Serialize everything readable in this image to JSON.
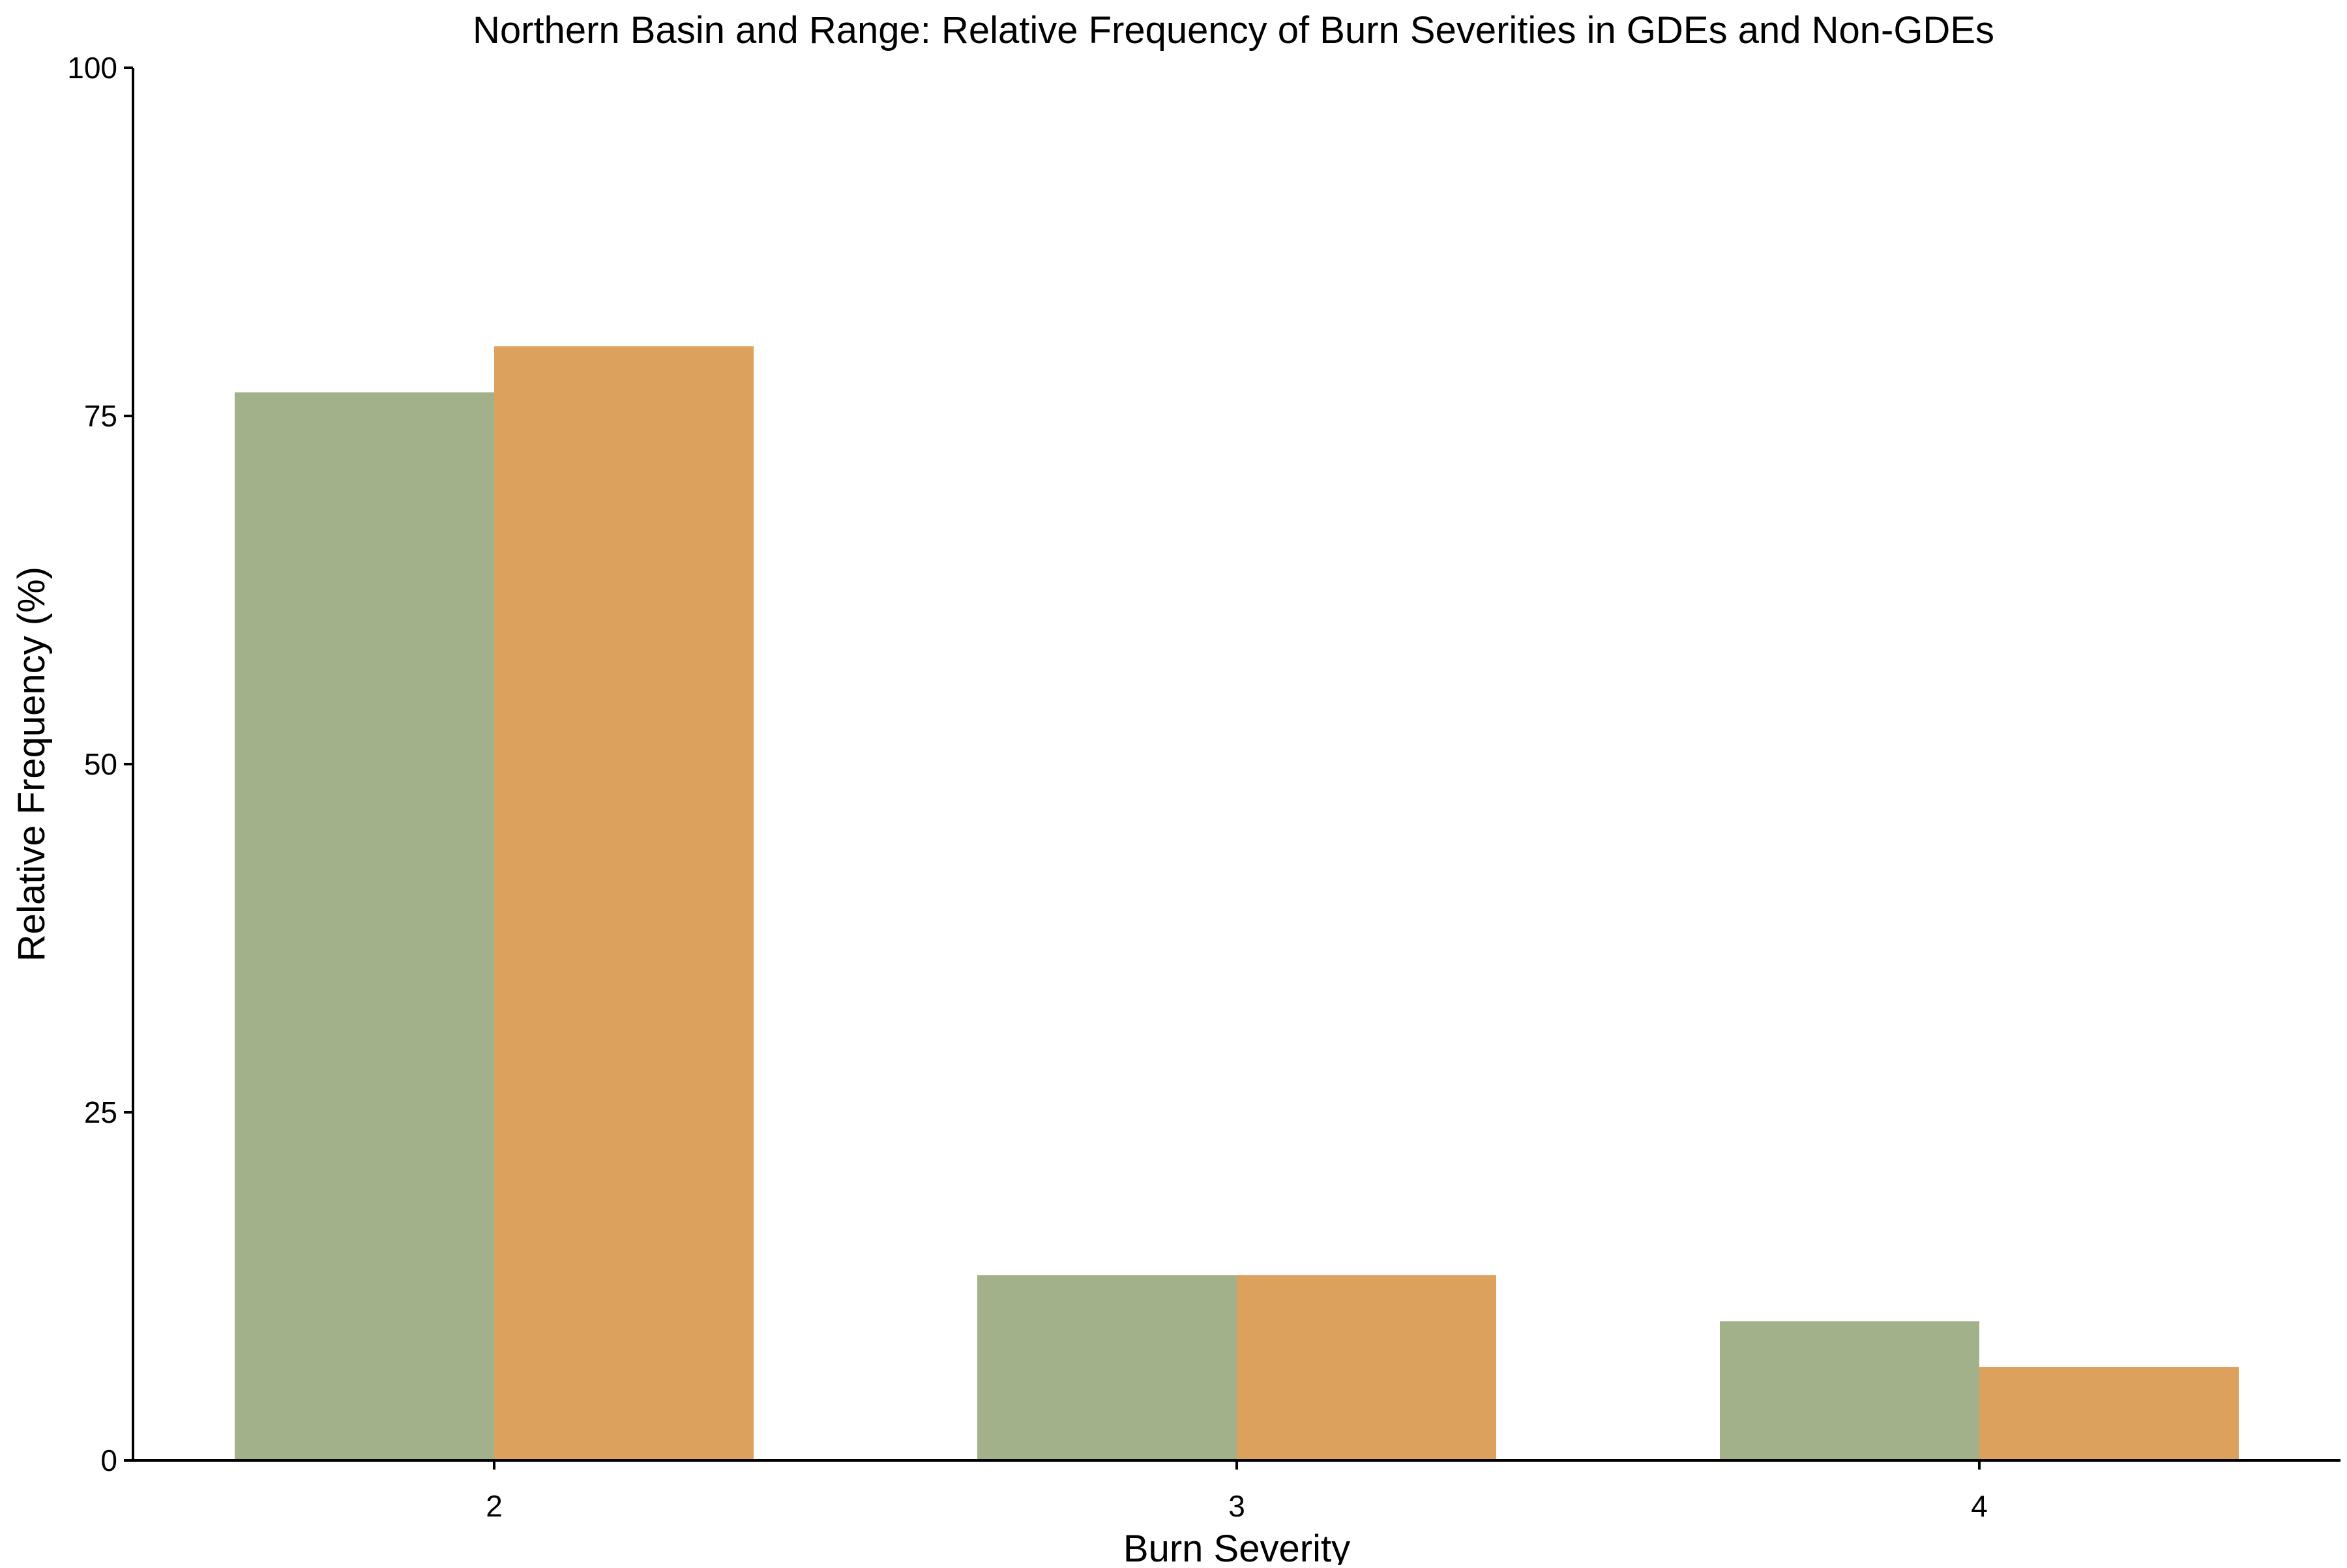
{
  "chart_data": {
    "type": "bar",
    "title": "Northern Basin and Range: Relative Frequency of Burn Severities in GDEs and Non-GDEs",
    "xlabel": "Burn Severity",
    "ylabel": "Relative Frequency (%)",
    "categories": [
      "2",
      "3",
      "4"
    ],
    "yticks": [
      "0",
      "25",
      "50",
      "75",
      "100"
    ],
    "ylim": [
      0,
      100
    ],
    "grid": false,
    "legend": "none",
    "series": [
      {
        "color": "#a3b18a",
        "values": [
          76.7,
          13.3,
          10.0
        ]
      },
      {
        "color": "#dda15e",
        "values": [
          80.0,
          13.3,
          6.7
        ]
      }
    ]
  }
}
